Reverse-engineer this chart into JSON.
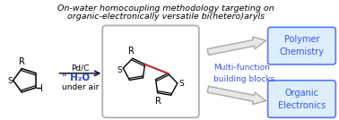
{
  "title_line1": "On-water homocoupling methodology targeting on",
  "title_line2": "organic-electronically versatile bi(hetero)aryls",
  "title_style": "italic",
  "title_fontsize": 6.8,
  "title_color": "#000000",
  "box_edge_color": "#5577ff",
  "box_face_color": "#ddeeff",
  "box_text_color": "#3355ee",
  "multi_text_color": "#3355ee",
  "water_color": "#2244dd",
  "reagent_color": "#000000",
  "background": "#ffffff",
  "box1_text": "Polymer\nChemistry",
  "box2_text": "Organic\nElectronics",
  "multi_text": "Multi-function\nbuilding blocks",
  "reagent1": "Pd/C",
  "reagent2": "\" H₂O \"",
  "reagent3": "under air",
  "figsize": [
    3.78,
    1.34
  ],
  "dpi": 100
}
